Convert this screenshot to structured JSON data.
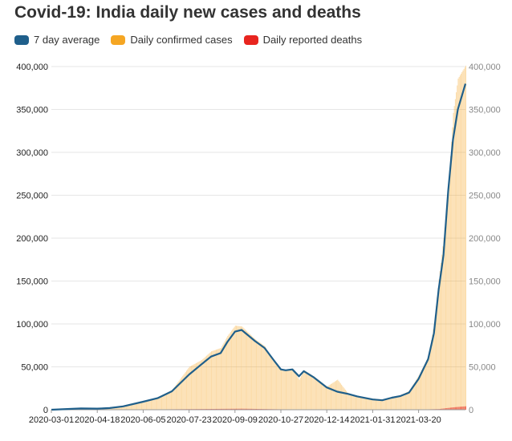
{
  "chart_data": {
    "type": "bar",
    "title": "Covid-19: India daily new cases and deaths",
    "xlabel": "",
    "ylabel": "",
    "ylim": [
      0,
      400000
    ],
    "yticks": [
      0,
      50000,
      100000,
      150000,
      200000,
      250000,
      300000,
      350000,
      400000
    ],
    "ytick_labels": [
      "0",
      "50,000",
      "100,000",
      "150,000",
      "200,000",
      "250,000",
      "300,000",
      "350,000",
      "400,000"
    ],
    "xticks": [
      "2020-03-01",
      "2020-04-18",
      "2020-06-05",
      "2020-07-23",
      "2020-09-09",
      "2020-10-27",
      "2020-12-14",
      "2021-01-31",
      "2021-03-20"
    ],
    "x_range": [
      "2020-03-01",
      "2021-05-08"
    ],
    "grid": true,
    "legend_position": "top-left",
    "series": [
      {
        "name": "7 day average",
        "type": "line",
        "color": "#1f5f8b",
        "points": [
          [
            "2020-03-01",
            0
          ],
          [
            "2020-04-01",
            1500
          ],
          [
            "2020-04-18",
            1300
          ],
          [
            "2020-05-01",
            2000
          ],
          [
            "2020-05-15",
            3900
          ],
          [
            "2020-06-05",
            9300
          ],
          [
            "2020-06-20",
            13500
          ],
          [
            "2020-07-05",
            21500
          ],
          [
            "2020-07-23",
            41000
          ],
          [
            "2020-08-05",
            53000
          ],
          [
            "2020-08-15",
            62000
          ],
          [
            "2020-08-25",
            66000
          ],
          [
            "2020-09-01",
            79000
          ],
          [
            "2020-09-09",
            91000
          ],
          [
            "2020-09-16",
            93000
          ],
          [
            "2020-09-30",
            80000
          ],
          [
            "2020-10-10",
            72000
          ],
          [
            "2020-10-20",
            57000
          ],
          [
            "2020-10-27",
            47000
          ],
          [
            "2020-11-01",
            46000
          ],
          [
            "2020-11-08",
            47000
          ],
          [
            "2020-11-15",
            39000
          ],
          [
            "2020-11-20",
            45000
          ],
          [
            "2020-11-30",
            38000
          ],
          [
            "2020-12-14",
            26000
          ],
          [
            "2020-12-25",
            21000
          ],
          [
            "2021-01-05",
            18500
          ],
          [
            "2021-01-15",
            15500
          ],
          [
            "2021-01-31",
            12000
          ],
          [
            "2021-02-10",
            11000
          ],
          [
            "2021-02-20",
            14000
          ],
          [
            "2021-03-01",
            16000
          ],
          [
            "2021-03-10",
            20000
          ],
          [
            "2021-03-20",
            36000
          ],
          [
            "2021-03-30",
            59000
          ],
          [
            "2021-04-05",
            89000
          ],
          [
            "2021-04-10",
            140000
          ],
          [
            "2021-04-15",
            180000
          ],
          [
            "2021-04-20",
            255000
          ],
          [
            "2021-04-25",
            315000
          ],
          [
            "2021-04-30",
            350000
          ],
          [
            "2021-05-08",
            380000
          ]
        ]
      },
      {
        "name": "Daily confirmed cases",
        "type": "bar",
        "color": "#f5a623",
        "points": [
          [
            "2020-03-01",
            0
          ],
          [
            "2020-04-01",
            1800
          ],
          [
            "2020-04-18",
            1400
          ],
          [
            "2020-05-01",
            2200
          ],
          [
            "2020-05-15",
            4200
          ],
          [
            "2020-06-05",
            9800
          ],
          [
            "2020-06-20",
            14500
          ],
          [
            "2020-07-05",
            23000
          ],
          [
            "2020-07-23",
            50000
          ],
          [
            "2020-08-05",
            58000
          ],
          [
            "2020-08-15",
            68000
          ],
          [
            "2020-08-25",
            72000
          ],
          [
            "2020-09-01",
            86000
          ],
          [
            "2020-09-09",
            98000
          ],
          [
            "2020-09-16",
            97000
          ],
          [
            "2020-09-30",
            82000
          ],
          [
            "2020-10-10",
            74000
          ],
          [
            "2020-10-20",
            55000
          ],
          [
            "2020-10-27",
            46000
          ],
          [
            "2020-11-01",
            45000
          ],
          [
            "2020-11-08",
            48000
          ],
          [
            "2020-11-15",
            35000
          ],
          [
            "2020-11-20",
            46000
          ],
          [
            "2020-11-30",
            39000
          ],
          [
            "2020-12-14",
            27000
          ],
          [
            "2020-12-25",
            35000
          ],
          [
            "2021-01-05",
            19000
          ],
          [
            "2021-01-15",
            16000
          ],
          [
            "2021-01-31",
            13000
          ],
          [
            "2021-02-10",
            12000
          ],
          [
            "2021-02-20",
            15000
          ],
          [
            "2021-03-01",
            17000
          ],
          [
            "2021-03-10",
            22000
          ],
          [
            "2021-03-20",
            40000
          ],
          [
            "2021-03-30",
            62000
          ],
          [
            "2021-04-05",
            100000
          ],
          [
            "2021-04-10",
            152000
          ],
          [
            "2021-04-15",
            200000
          ],
          [
            "2021-04-20",
            262000
          ],
          [
            "2021-04-25",
            346000
          ],
          [
            "2021-04-30",
            386000
          ],
          [
            "2021-05-08",
            401000
          ]
        ]
      },
      {
        "name": "Daily reported deaths",
        "type": "bar",
        "color": "#e8251f",
        "points": [
          [
            "2020-03-01",
            0
          ],
          [
            "2020-05-15",
            120
          ],
          [
            "2020-06-20",
            400
          ],
          [
            "2020-07-23",
            700
          ],
          [
            "2020-08-25",
            1000
          ],
          [
            "2020-09-16",
            1200
          ],
          [
            "2020-10-27",
            500
          ],
          [
            "2020-12-14",
            350
          ],
          [
            "2021-01-31",
            100
          ],
          [
            "2021-03-20",
            200
          ],
          [
            "2021-04-10",
            800
          ],
          [
            "2021-04-25",
            2800
          ],
          [
            "2021-05-08",
            4000
          ]
        ]
      }
    ]
  }
}
